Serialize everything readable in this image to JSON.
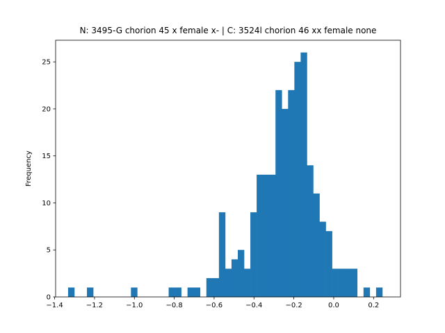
{
  "chart_data": {
    "type": "bar",
    "title": "N: 3495-G chorion 45 x female x- | C: 3524l chorion 46 xx female none",
    "xlabel": "",
    "ylabel": "Frequency",
    "xlim": [
      -1.395,
      0.335
    ],
    "ylim": [
      0,
      27.3
    ],
    "x_ticks": [
      -1.4,
      -1.2,
      -1.0,
      -0.8,
      -0.6,
      -0.4,
      -0.2,
      0.0,
      0.2
    ],
    "x_tick_labels": [
      "−1.4",
      "−1.2",
      "−1.0",
      "−0.8",
      "−0.6",
      "−0.4",
      "−0.2",
      "0.0",
      "0.2"
    ],
    "y_ticks": [
      0,
      5,
      10,
      15,
      20,
      25
    ],
    "y_tick_labels": [
      "0",
      "5",
      "10",
      "15",
      "20",
      "25"
    ],
    "bar_color": "#1f77b4",
    "bin_start": -1.3325,
    "bin_width": 0.03153,
    "values": [
      1,
      0,
      0,
      1,
      0,
      0,
      0,
      0,
      0,
      0,
      1,
      0,
      0,
      0,
      0,
      0,
      1,
      1,
      0,
      1,
      1,
      0,
      2,
      2,
      9,
      3,
      4,
      5,
      3,
      9,
      13,
      13,
      13,
      22,
      20,
      22,
      25,
      26,
      14,
      11,
      8,
      7,
      3,
      3,
      3,
      3,
      0,
      1,
      0,
      1
    ]
  }
}
